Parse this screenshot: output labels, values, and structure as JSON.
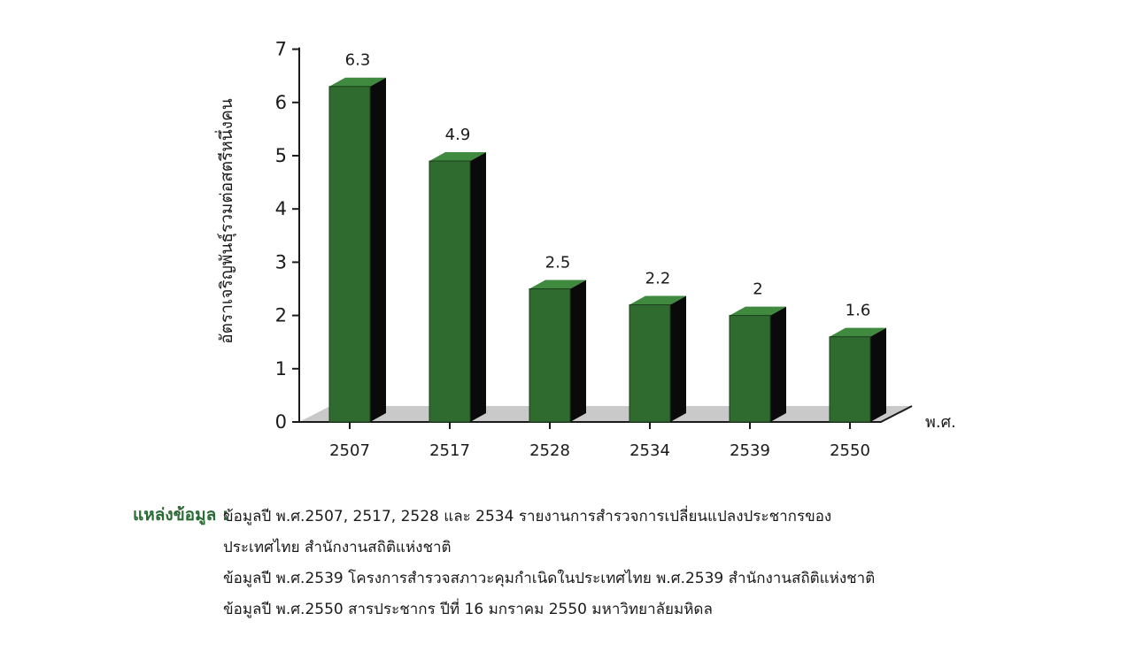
{
  "chart_data": {
    "type": "bar",
    "title": "",
    "xlabel": "",
    "x_unit": "พ.ศ.",
    "ylabel": "อัตราเจริญพันธุ์รวมต่อสตรีหนึ่งคน",
    "ylim": [
      0,
      7
    ],
    "yticks": [
      "0",
      "1",
      "2",
      "3",
      "4",
      "5",
      "6",
      "7"
    ],
    "categories": [
      "2507",
      "2517",
      "2528",
      "2534",
      "2539",
      "2550"
    ],
    "values": [
      6.3,
      4.9,
      2.5,
      2.2,
      2,
      1.6
    ],
    "value_labels": [
      "6.3",
      "4.9",
      "2.5",
      "2.2",
      "2",
      "1.6"
    ],
    "grid": false,
    "style": "3d",
    "colors": {
      "bar_front": "#2f6a2f",
      "bar_top": "#3f8a3f",
      "bar_side": "#0a0a0a",
      "floor": "#c9c9c9"
    }
  },
  "source": {
    "label": "แหล่งข้อมูล :",
    "lines": [
      "ข้อมูลปี พ.ศ.2507, 2517, 2528 และ 2534 รายงานการสำรวจการเปลี่ยนแปลงประชากรของ",
      "ประเทศไทย สำนักงานสถิติแห่งชาติ",
      "ข้อมูลปี พ.ศ.2539 โครงการสำรวจสภาวะคุมกำเนิดในประเทศไทย พ.ศ.2539 สำนักงานสถิติแห่งชาติ",
      "ข้อมูลปี พ.ศ.2550 สารประชากร ปีที่ 16 มกราคม 2550 มหาวิทยาลัยมหิดล"
    ]
  }
}
